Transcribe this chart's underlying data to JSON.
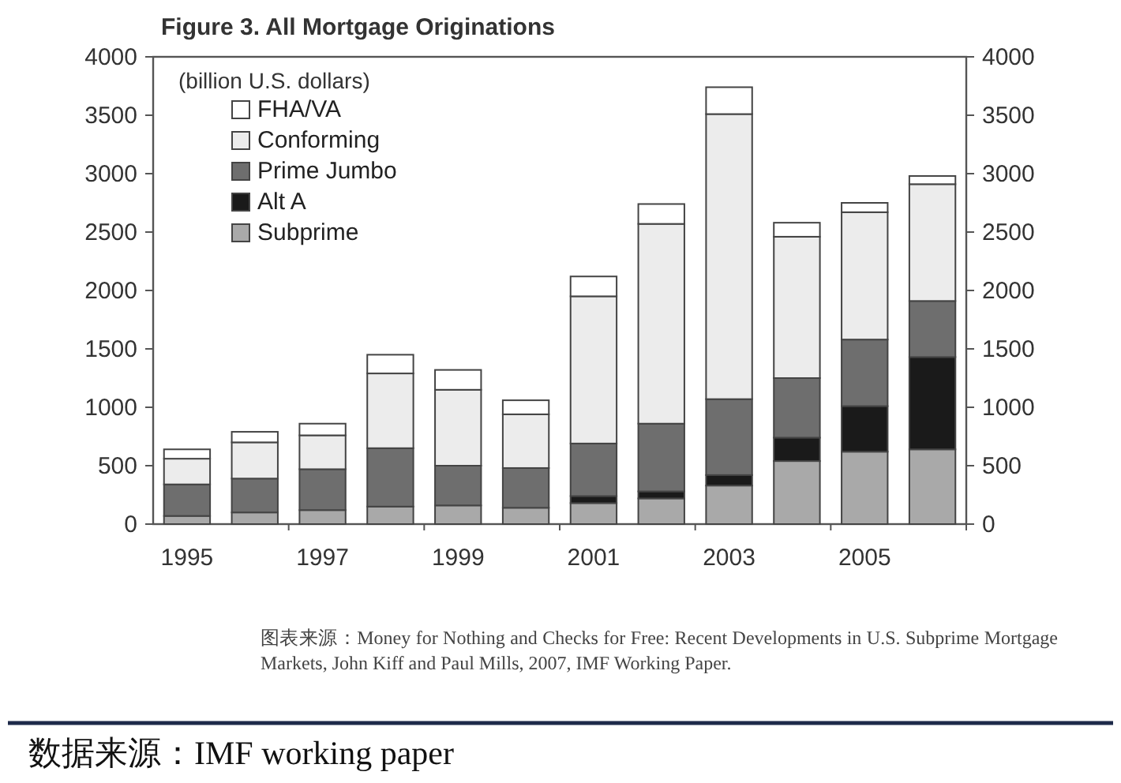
{
  "chart_data": {
    "type": "bar",
    "stacked": true,
    "title": "Figure 3. All Mortgage Originations",
    "ylabel": "(billion U.S. dollars)",
    "categories": [
      "1995",
      null,
      "1997",
      null,
      "1999",
      null,
      "2001",
      null,
      "2003",
      null,
      "2005",
      null
    ],
    "series": [
      {
        "name": "Subprime",
        "color": "#a9a9a9",
        "values": [
          70,
          100,
          120,
          150,
          160,
          140,
          180,
          220,
          330,
          540,
          620,
          640
        ]
      },
      {
        "name": "Alt A",
        "color": "#1a1a1a",
        "values": [
          0,
          0,
          0,
          0,
          0,
          0,
          60,
          60,
          90,
          200,
          390,
          790
        ]
      },
      {
        "name": "Prime Jumbo",
        "color": "#6e6e6e",
        "values": [
          270,
          290,
          350,
          500,
          340,
          340,
          450,
          580,
          650,
          510,
          570,
          480
        ]
      },
      {
        "name": "Conforming",
        "color": "#ececec",
        "values": [
          220,
          310,
          290,
          640,
          650,
          460,
          1260,
          1710,
          2440,
          1210,
          1090,
          1000
        ]
      },
      {
        "name": "FHA/VA",
        "color": "#ffffff",
        "values": [
          80,
          90,
          100,
          160,
          170,
          120,
          170,
          170,
          230,
          120,
          80,
          70
        ]
      }
    ],
    "ylim": [
      0,
      4000
    ],
    "yticks": [
      0,
      500,
      1000,
      1500,
      2000,
      2500,
      3000,
      3500,
      4000
    ],
    "y2lim": [
      0,
      4000
    ],
    "y2ticks": [
      0,
      500,
      1000,
      1500,
      2000,
      2500,
      3000,
      3500,
      4000
    ],
    "legend": "top left",
    "annotations": [
      "图表来源：Money for Nothing and Checks for Free: Recent Developments in U.S. Subprime Mortgage Markets, John Kiff and Paul Mills, 2007, IMF Working Paper.",
      "数据来源：IMF working paper"
    ]
  }
}
